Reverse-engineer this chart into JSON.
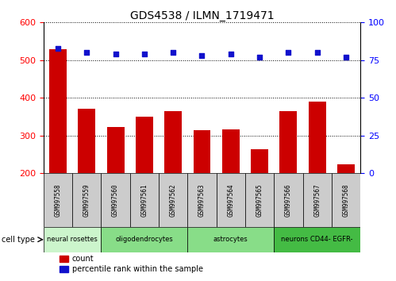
{
  "title": "GDS4538 / ILMN_1719471",
  "samples": [
    "GSM997558",
    "GSM997559",
    "GSM997560",
    "GSM997561",
    "GSM997562",
    "GSM997563",
    "GSM997564",
    "GSM997565",
    "GSM997566",
    "GSM997567",
    "GSM997568"
  ],
  "counts": [
    530,
    372,
    322,
    350,
    364,
    314,
    316,
    264,
    364,
    390,
    224
  ],
  "percentile_ranks": [
    83,
    80,
    79,
    79,
    80,
    78,
    79,
    77,
    80,
    80,
    77
  ],
  "ylim_left": [
    200,
    600
  ],
  "ylim_right": [
    0,
    100
  ],
  "yticks_left": [
    200,
    300,
    400,
    500,
    600
  ],
  "yticks_right": [
    0,
    25,
    50,
    75,
    100
  ],
  "bar_color": "#cc0000",
  "dot_color": "#1111cc",
  "cell_groups": [
    {
      "label": "neural rosettes",
      "start": 0,
      "end": 2,
      "color": "#ccf5cc"
    },
    {
      "label": "oligodendrocytes",
      "start": 2,
      "end": 5,
      "color": "#88dd88"
    },
    {
      "label": "astrocytes",
      "start": 5,
      "end": 8,
      "color": "#88dd88"
    },
    {
      "label": "neurons CD44- EGFR-",
      "start": 8,
      "end": 11,
      "color": "#44bb44"
    }
  ],
  "sample_box_color": "#cccccc",
  "legend_items": [
    {
      "color": "#cc0000",
      "label": "count"
    },
    {
      "color": "#1111cc",
      "label": "percentile rank within the sample"
    }
  ]
}
